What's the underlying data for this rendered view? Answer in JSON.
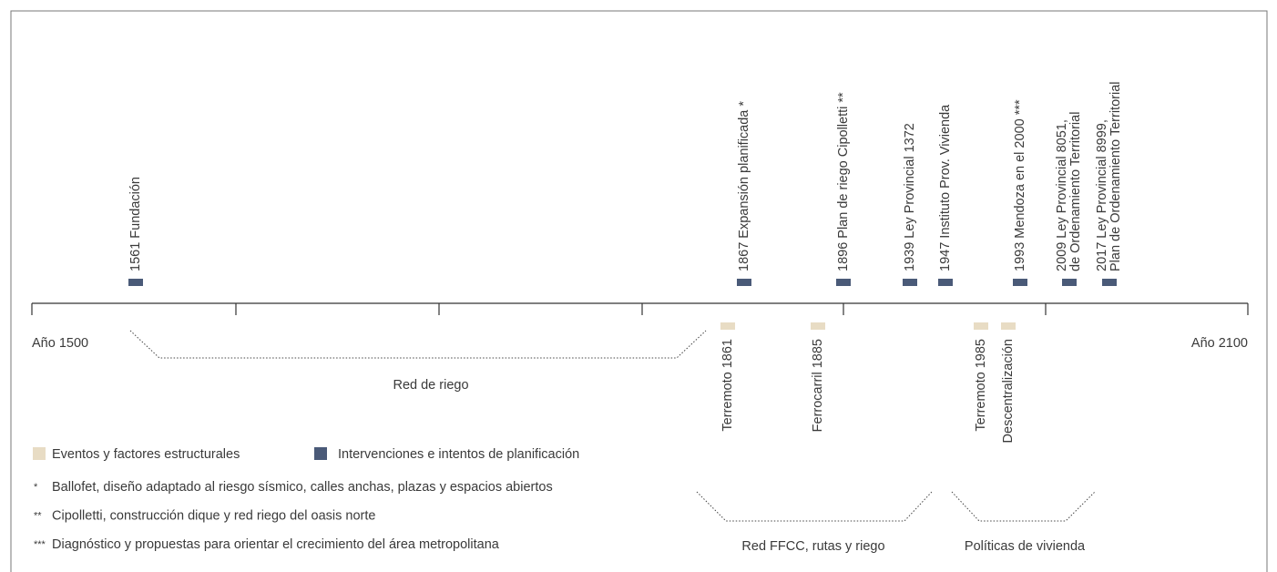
{
  "timeline": {
    "start_label": "Año 1500",
    "end_label": "Año 2100",
    "interventions": [
      {
        "lines": [
          "1561 Fundación"
        ]
      },
      {
        "lines": [
          "1867 Expansión planificada *"
        ]
      },
      {
        "lines": [
          "1896 Plan de riego Cipolletti **"
        ]
      },
      {
        "lines": [
          "1939 Ley Provincial 1372"
        ]
      },
      {
        "lines": [
          "1947 Instituto Prov. Vivienda"
        ]
      },
      {
        "lines": [
          "1993 Mendoza en el 2000 ***"
        ]
      },
      {
        "lines": [
          "2009 Ley Provincial 8051,",
          "de Ordenamiento Territorial"
        ]
      },
      {
        "lines": [
          "2017 Ley Provincial 8999,",
          "Plan de Ordenamiento Territorial"
        ]
      }
    ],
    "events": [
      {
        "label": "Terremoto 1861"
      },
      {
        "label": "Ferrocarril 1885"
      },
      {
        "label": "Terremoto 1985"
      },
      {
        "label": "Descentralización"
      }
    ],
    "periods": [
      {
        "label": "Red de riego"
      },
      {
        "label": "Red FFCC, rutas y riego"
      },
      {
        "label": "Políticas de vivienda"
      }
    ]
  },
  "legend": {
    "items": [
      {
        "label": "Eventos y factores estructurales"
      },
      {
        "label": "Intervenciones e intentos de planificación"
      }
    ],
    "notes": [
      {
        "mark": "*",
        "text": "Ballofet, diseño adaptado al riesgo sísmico, calles anchas, plazas y espacios abiertos"
      },
      {
        "mark": "**",
        "text": "Cipolletti, construcción dique y red riego del oasis norte"
      },
      {
        "mark": "***",
        "text": "Diagnóstico y propuestas para orientar el crecimiento del área metropolitana"
      }
    ]
  }
}
